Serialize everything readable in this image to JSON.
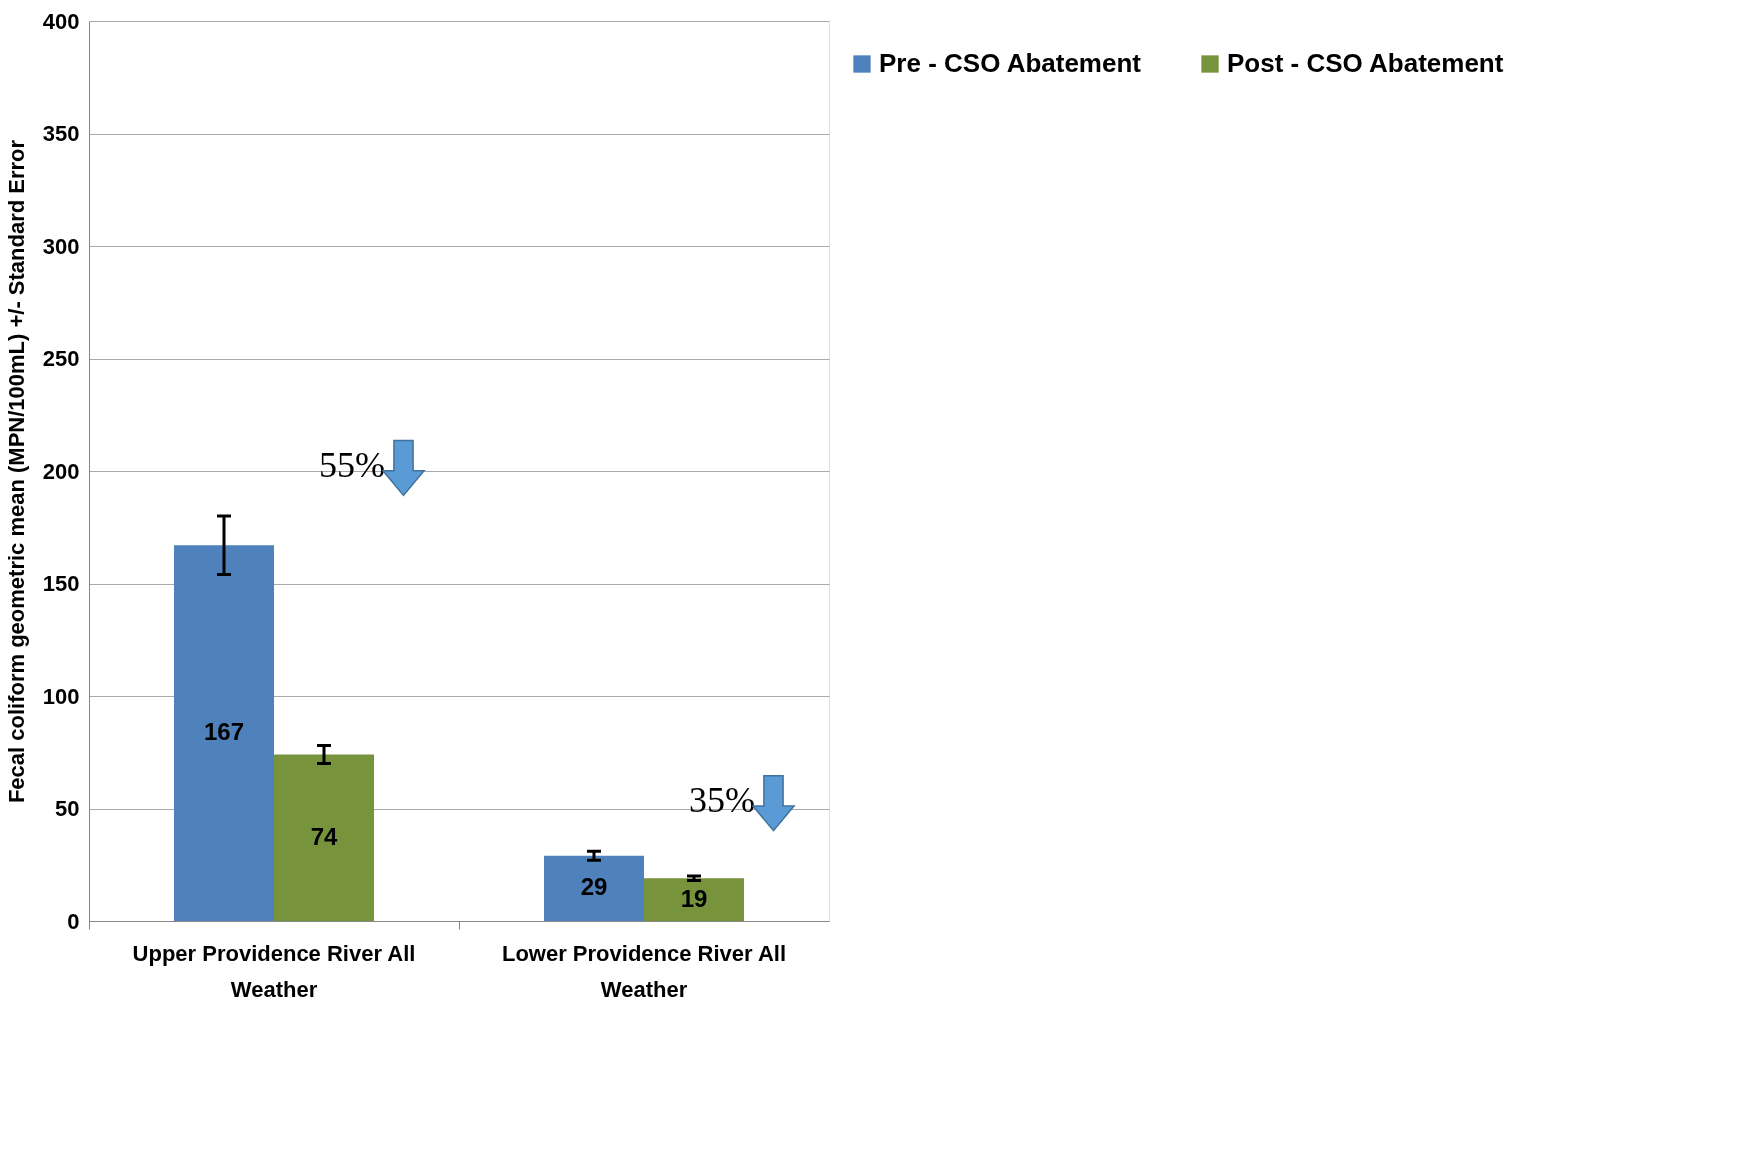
{
  "chart_data": {
    "type": "bar",
    "ylabel": "Fecal coliform geometric mean (MPN/100mL) +/- Standard Error",
    "categories": [
      "Upper Providence River All Weather",
      "Lower Providence River All Weather"
    ],
    "series": [
      {
        "name": "Pre - CSO Abatement",
        "color": "#4f81bd",
        "values": [
          167,
          29
        ],
        "errors": [
          13,
          2
        ]
      },
      {
        "name": "Post - CSO Abatement",
        "color": "#77933c",
        "values": [
          74,
          19
        ],
        "errors": [
          4,
          1
        ]
      }
    ],
    "ylim": [
      0,
      400
    ],
    "yticks": [
      0,
      50,
      100,
      150,
      200,
      250,
      300,
      350,
      400
    ],
    "grid": "y",
    "legend": "top right",
    "data_labels": true,
    "annotations": [
      "55%",
      "35%"
    ]
  }
}
